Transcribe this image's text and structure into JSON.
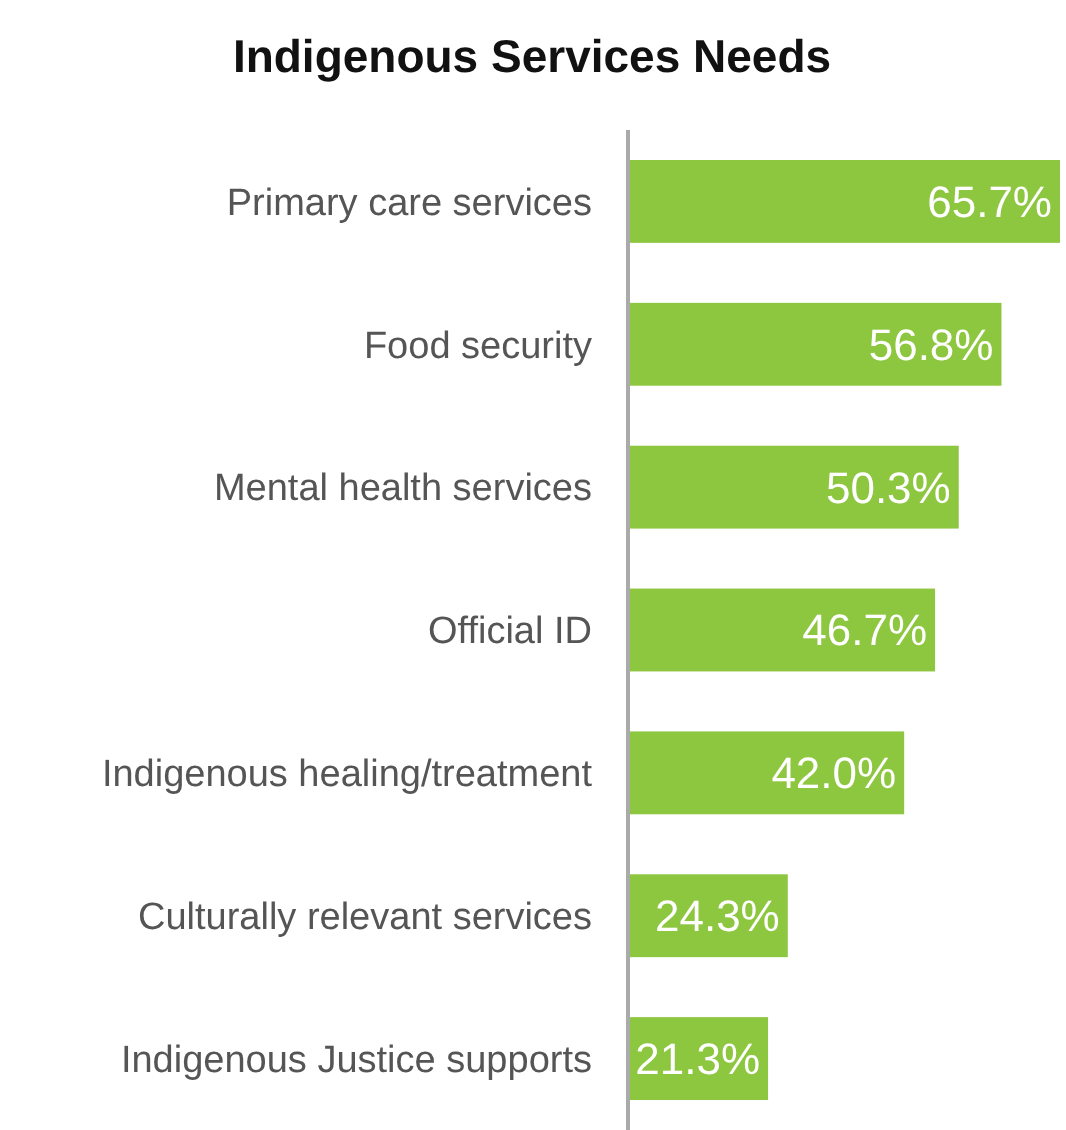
{
  "chart_data": {
    "type": "bar",
    "orientation": "horizontal",
    "title": "Indigenous Services Needs",
    "categories": [
      "Primary care services",
      "Food security",
      "Mental health services",
      "Official ID",
      "Indigenous healing/treatment",
      "Culturally relevant services",
      "Indigenous Justice supports"
    ],
    "values": [
      65.7,
      56.8,
      50.3,
      46.7,
      42.0,
      24.3,
      21.3
    ],
    "value_labels": [
      "65.7%",
      "56.8%",
      "50.3%",
      "46.7%",
      "42.0%",
      "24.3%",
      "21.3%"
    ],
    "color": "#8dc63f"
  }
}
